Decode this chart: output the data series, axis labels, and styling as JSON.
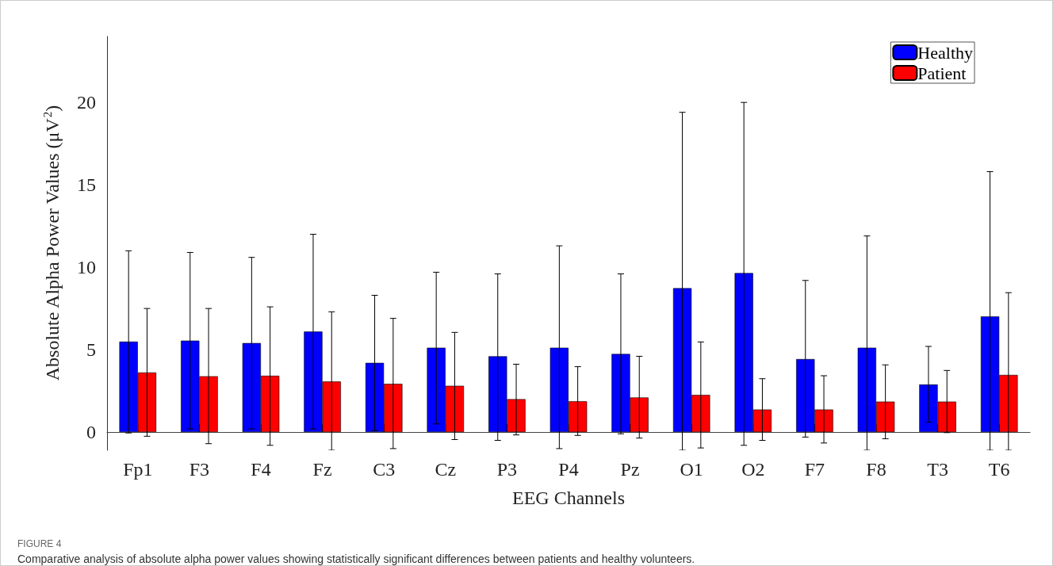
{
  "chart_data": {
    "type": "bar",
    "title": "FIGURE 4",
    "annotations": [
      "Comparative analysis of absolute alpha power values showing statistically significant differences between patients and healthy volunteers."
    ],
    "xlabel": "EEG Channels",
    "ylabel": "Absolute Alpha Power Values (μV$^{2}$)",
    "categories": [
      "Fp1",
      "F3",
      "F4",
      "Fz",
      "C3",
      "Cz",
      "P3",
      "P4",
      "Pz",
      "O1",
      "O2",
      "F7",
      "F8",
      "T3",
      "T6"
    ],
    "series": [
      {
        "name": "Healthy",
        "color": "#0000ff",
        "values": [
          5.49,
          5.55,
          5.4,
          6.1,
          4.2,
          5.12,
          4.6,
          5.12,
          4.74,
          8.73,
          9.65,
          4.43,
          5.12,
          2.89,
          7.02
        ],
        "errors": [
          [
            -0.05,
            11.0
          ],
          [
            0.2,
            10.9
          ],
          [
            0.2,
            10.6
          ],
          [
            0.2,
            12.0
          ],
          [
            0.1,
            8.3
          ],
          [
            0.5,
            9.7
          ],
          [
            -0.5,
            9.6
          ],
          [
            -1.0,
            11.3
          ],
          [
            -0.1,
            9.6
          ],
          [
            -1.1,
            19.4
          ],
          [
            -0.8,
            20.0
          ],
          [
            -0.3,
            9.2
          ],
          [
            -1.1,
            11.9
          ],
          [
            0.6,
            5.2
          ],
          [
            -1.1,
            15.8
          ]
        ]
      },
      {
        "name": "Patient",
        "color": "#ff0000",
        "values": [
          3.62,
          3.39,
          3.42,
          3.07,
          2.93,
          2.81,
          2.0,
          1.87,
          2.1,
          2.26,
          1.37,
          1.37,
          1.85,
          1.85,
          3.47
        ],
        "errors": [
          [
            -0.25,
            7.5
          ],
          [
            -0.7,
            7.5
          ],
          [
            -0.8,
            7.6
          ],
          [
            -1.1,
            7.3
          ],
          [
            -1.0,
            6.9
          ],
          [
            -0.45,
            6.05
          ],
          [
            -0.17,
            4.12
          ],
          [
            -0.2,
            3.97
          ],
          [
            -0.36,
            4.6
          ],
          [
            -0.96,
            5.47
          ],
          [
            -0.5,
            3.24
          ],
          [
            -0.66,
            3.42
          ],
          [
            -0.4,
            4.08
          ],
          [
            -0.03,
            3.74
          ],
          [
            -1.1,
            8.46
          ]
        ]
      }
    ],
    "ylim": [
      -1.1,
      24
    ],
    "yticks": [
      0,
      5,
      10,
      15,
      20
    ],
    "ref_lines": [
      {
        "axis": "y",
        "value": 0
      }
    ],
    "grid": false,
    "legend": "top right"
  }
}
